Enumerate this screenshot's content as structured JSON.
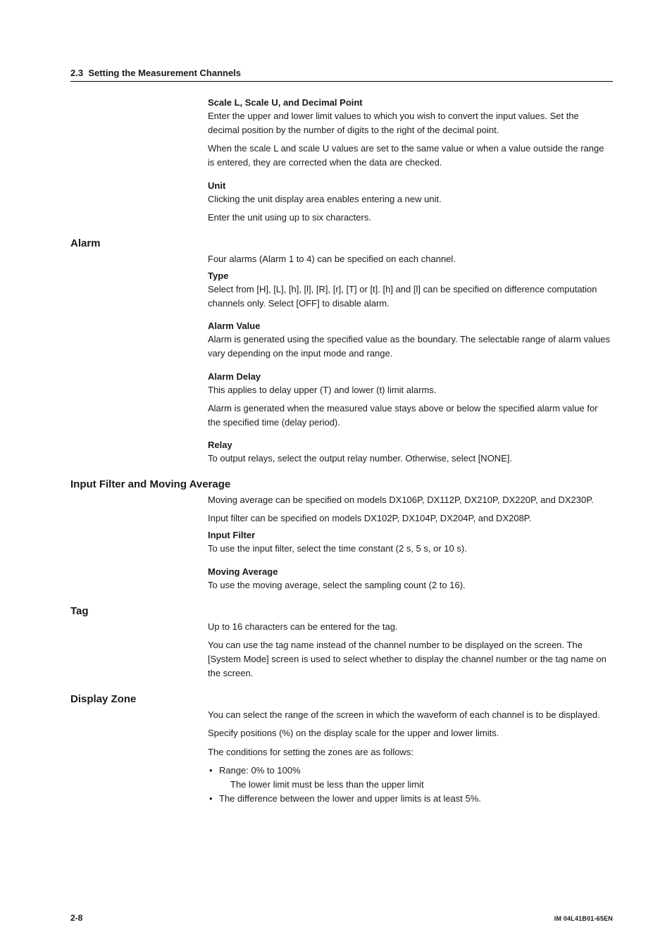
{
  "header": {
    "section_number": "2.3",
    "section_title": "Setting the Measurement Channels"
  },
  "sections": [
    {
      "subsections": [
        {
          "heading": "Scale L, Scale U, and Decimal Point",
          "paragraphs": [
            "Enter the upper and lower limit values to which you wish to convert the input values. Set the decimal position by the number of digits to the right of the decimal point.",
            "When the scale L and scale U values are set to the same value or when a value outside the range is entered, they are corrected when the data are checked."
          ]
        },
        {
          "heading": "Unit",
          "paragraphs": [
            "Clicking the unit display area enables entering a new unit.",
            "Enter the unit using up to six characters."
          ]
        }
      ]
    },
    {
      "title": "Alarm",
      "intro": "Four alarms (Alarm 1 to 4) can be specified on each channel.",
      "subsections": [
        {
          "heading": "Type",
          "paragraphs": [
            "Select from [H], [L], [h],  [l], [R], [r], [T] or [t]. [h] and [l] can be specified on difference computation channels only. Select [OFF] to disable alarm."
          ]
        },
        {
          "heading": "Alarm Value",
          "paragraphs": [
            "Alarm is generated using the specified value as the boundary. The selectable range of alarm values vary depending on the input mode and range."
          ]
        },
        {
          "heading": "Alarm Delay",
          "paragraphs": [
            "This applies to delay upper (T) and lower (t) limit alarms.",
            "Alarm is generated when the measured value stays above or below the specified alarm value for the specified time (delay period)."
          ]
        },
        {
          "heading": "Relay",
          "paragraphs": [
            "To output relays, select the output relay number. Otherwise, select [NONE]."
          ]
        }
      ]
    },
    {
      "title": "Input Filter and Moving Average",
      "intro_lines": [
        "Moving average can be specified on models DX106P, DX112P, DX210P, DX220P, and DX230P.",
        "Input filter can be specified on models DX102P, DX104P, DX204P, and DX208P."
      ],
      "subsections": [
        {
          "heading": "Input Filter",
          "paragraphs": [
            "To use the input filter, select the time constant (2 s, 5 s, or 10 s)."
          ]
        },
        {
          "heading": "Moving Average",
          "paragraphs": [
            "To use the moving average, select the sampling count (2 to 16)."
          ]
        }
      ]
    },
    {
      "title": "Tag",
      "paragraphs": [
        "Up to 16 characters can be entered for the tag.",
        "You can use the tag name instead of the channel number to be displayed on the screen. The [System Mode] screen is used to select whether to display the channel number or the tag name on the screen."
      ]
    },
    {
      "title": "Display Zone",
      "paragraphs": [
        "You can select the range of the screen in which the waveform of each channel is to be displayed.",
        "Specify positions (%) on the display scale for the upper and lower limits.",
        "The conditions for setting the zones are as follows:"
      ],
      "bullets": [
        {
          "text": "Range: 0% to 100%",
          "sub": "The lower limit must be less than the upper limit"
        },
        {
          "text": "The difference between the lower and upper limits is at least 5%."
        }
      ]
    }
  ],
  "footer": {
    "page": "2-8",
    "doc": "IM 04L41B01-65EN"
  }
}
